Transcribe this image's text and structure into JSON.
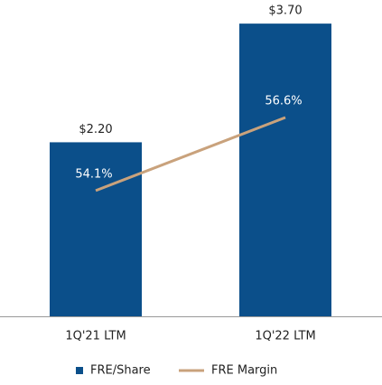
{
  "chart_data": {
    "type": "bar-line",
    "categories": [
      "1Q'21 LTM",
      "1Q'22 LTM"
    ],
    "series": [
      {
        "name": "FRE/Share",
        "type": "bar",
        "color": "#0b4f8a",
        "values": [
          2.2,
          3.7
        ],
        "value_labels": [
          "$2.20",
          "$3.70"
        ]
      },
      {
        "name": "FRE Margin",
        "type": "line",
        "axis": "y2",
        "color": "#c9a27c",
        "values": [
          54.1,
          56.6
        ],
        "value_labels": [
          "54.1%",
          "56.6%"
        ]
      }
    ],
    "ylim": [
      0,
      3.77
    ],
    "y2lim": [
      49.8,
      60.0
    ]
  }
}
